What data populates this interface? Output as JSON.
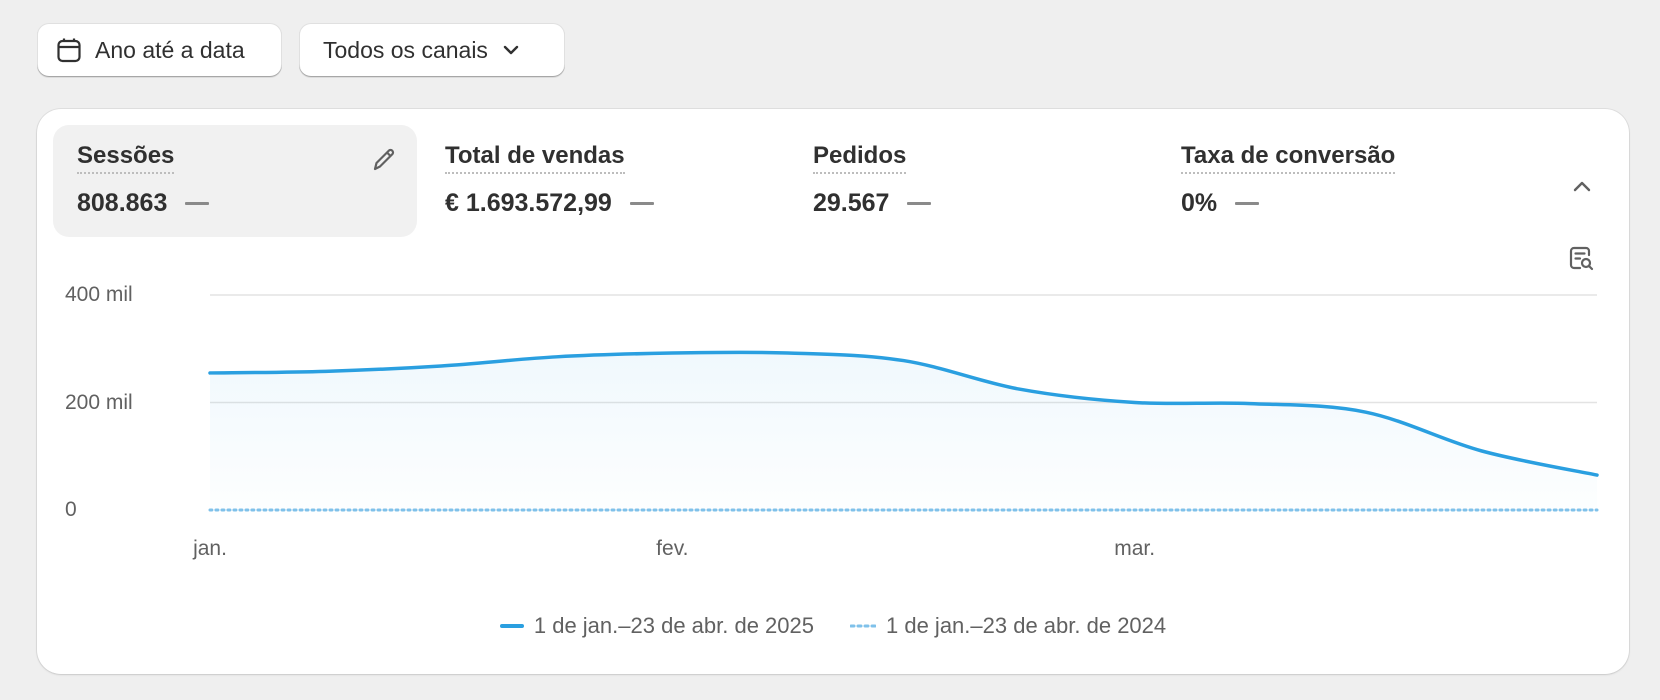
{
  "toolbar": {
    "date_button_label": "Ano até a data",
    "date_icon": "calendar-icon",
    "channel_button_label": "Todos os canais",
    "channel_icon": "chevron-down-icon"
  },
  "metrics": [
    {
      "label": "Sessões",
      "value": "808.863",
      "active": true
    },
    {
      "label": "Total de vendas",
      "value": "€ 1.693.572,99",
      "active": false
    },
    {
      "label": "Pedidos",
      "value": "29.567",
      "active": false
    },
    {
      "label": "Taxa de conversão",
      "value": "0%",
      "active": false
    }
  ],
  "icons": {
    "edit": "pencil-icon",
    "collapse": "chevron-up-icon",
    "explore": "explore-report-icon"
  },
  "colors": {
    "primary_series": "#2a9fe0",
    "comparison_series": "#7fc1ea",
    "active_metric_bg": "#f1f1f1",
    "page_bg": "#efefef"
  },
  "chart_data": {
    "type": "area",
    "x": [
      "jan.",
      "",
      "",
      "",
      "fev.",
      "",
      "",
      "",
      "mar.",
      "",
      "",
      "",
      ""
    ],
    "x_tick_labels": [
      "jan.",
      "fev.",
      "mar."
    ],
    "y_tick_labels": [
      "400 mil",
      "200 mil",
      "0"
    ],
    "ylim": [
      0,
      400000
    ],
    "series": [
      {
        "name": "1 de jan.–23 de abr. de 2025",
        "style": "solid",
        "values": [
          255000,
          258000,
          268000,
          285000,
          292000,
          292000,
          278000,
          225000,
          200000,
          198000,
          182000,
          110000,
          65000
        ]
      },
      {
        "name": "1 de jan.–23 de abr. de 2024",
        "style": "dotted",
        "values": [
          0,
          0,
          0,
          0,
          0,
          0,
          0,
          0,
          0,
          0,
          0,
          0,
          0
        ]
      }
    ],
    "grid": true,
    "legend_position": "bottom-center"
  }
}
